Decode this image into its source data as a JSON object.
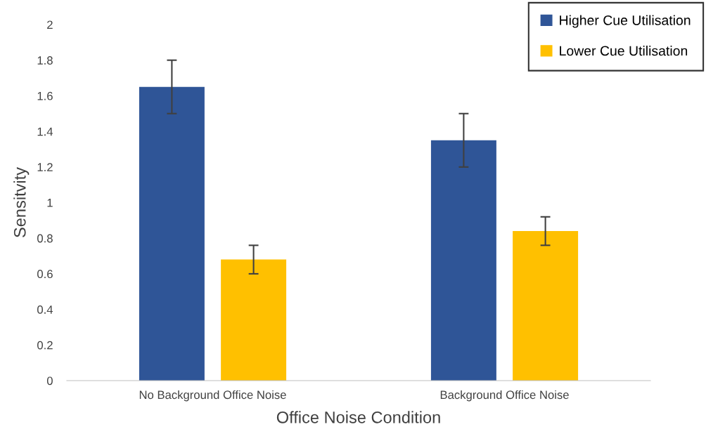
{
  "chart_data": {
    "type": "bar",
    "xlabel": "Office Noise Condition",
    "ylabel": "Sensitvity",
    "categories": [
      "No Background Office Noise",
      "Background Office Noise"
    ],
    "series": [
      {
        "name": "Higher Cue Utilisation",
        "color": "#2f5597",
        "values": [
          1.65,
          1.35
        ],
        "errors": [
          0.15,
          0.15
        ]
      },
      {
        "name": "Lower Cue Utilisation",
        "color": "#ffc000",
        "values": [
          0.68,
          0.84
        ],
        "errors": [
          0.08,
          0.08
        ]
      }
    ],
    "ylim": [
      0,
      2
    ],
    "yticks": [
      0,
      0.2,
      0.4,
      0.6,
      0.8,
      1,
      1.2,
      1.4,
      1.6,
      1.8,
      2
    ],
    "grid": false,
    "legend": "top right"
  }
}
